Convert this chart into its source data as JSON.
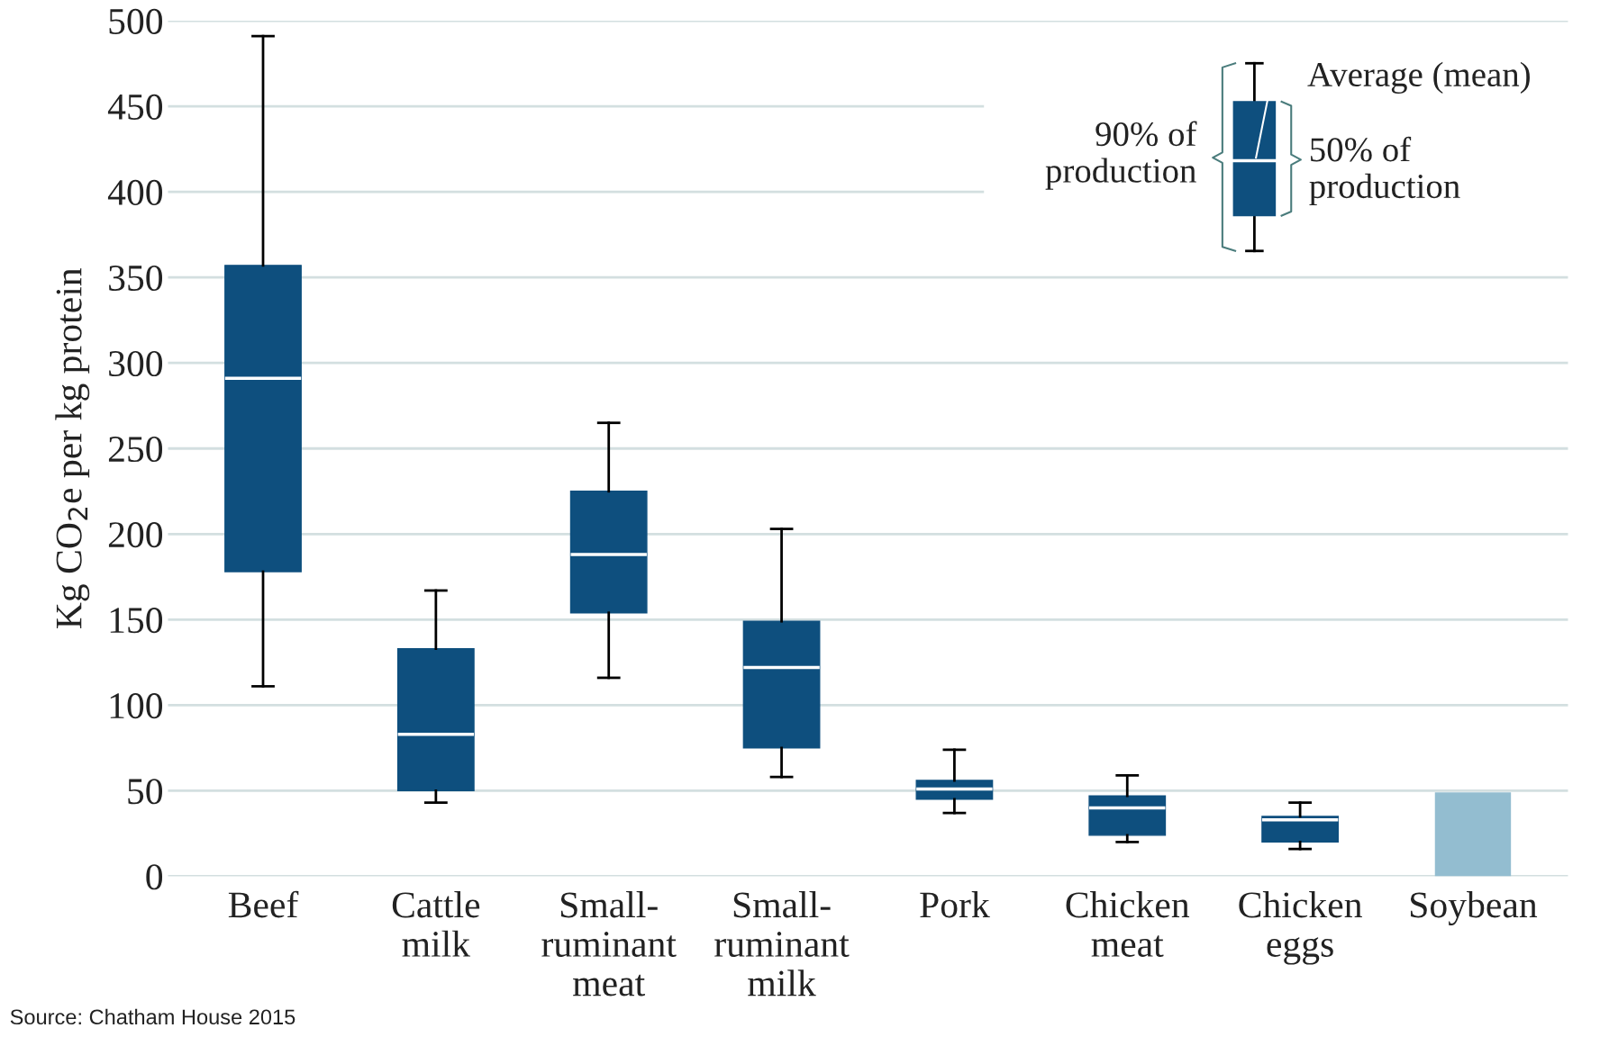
{
  "chart_data": {
    "type": "box",
    "ylabel": "Kg CO$_{2}$e per kg protein",
    "categories": [
      "Beef",
      "Cattle\nmilk",
      "Small-\nruminant\nmeat",
      "Small-\nruminant\nmilk",
      "Pork",
      "Chicken\nmeat",
      "Chicken\neggs",
      "Soybean"
    ],
    "series": [
      {
        "color": "#0e4f7e",
        "boxes": [
          {
            "low": 111,
            "q1": 178,
            "median": 291,
            "q3": 357,
            "high": 491
          },
          {
            "low": 43,
            "q1": 50,
            "median": 83,
            "q3": 133,
            "high": 167
          },
          {
            "low": 116,
            "q1": 154,
            "median": 188,
            "q3": 225,
            "high": 265
          },
          {
            "low": 58,
            "q1": 75,
            "median": 122,
            "q3": 149,
            "high": 203
          },
          {
            "low": 37,
            "q1": 45,
            "median": 51,
            "q3": 56,
            "high": 74
          },
          {
            "low": 20,
            "q1": 24,
            "median": 40,
            "q3": 47,
            "high": 59
          },
          {
            "low": 16,
            "q1": 20,
            "median": 33,
            "q3": 35,
            "high": 43
          },
          null
        ]
      },
      {
        "type": "bar",
        "color": "#93bdd0",
        "values": [
          null,
          null,
          null,
          null,
          null,
          null,
          null,
          49
        ]
      }
    ],
    "ylim": [
      0,
      500
    ],
    "yticks": [
      0,
      50,
      100,
      150,
      200,
      250,
      300,
      350,
      400,
      450,
      500
    ],
    "grid": "y",
    "annotations": [
      "Average (mean)",
      "90% of\nproduction",
      "50% of\nproduction",
      "Source: Chatham House 2015"
    ]
  }
}
